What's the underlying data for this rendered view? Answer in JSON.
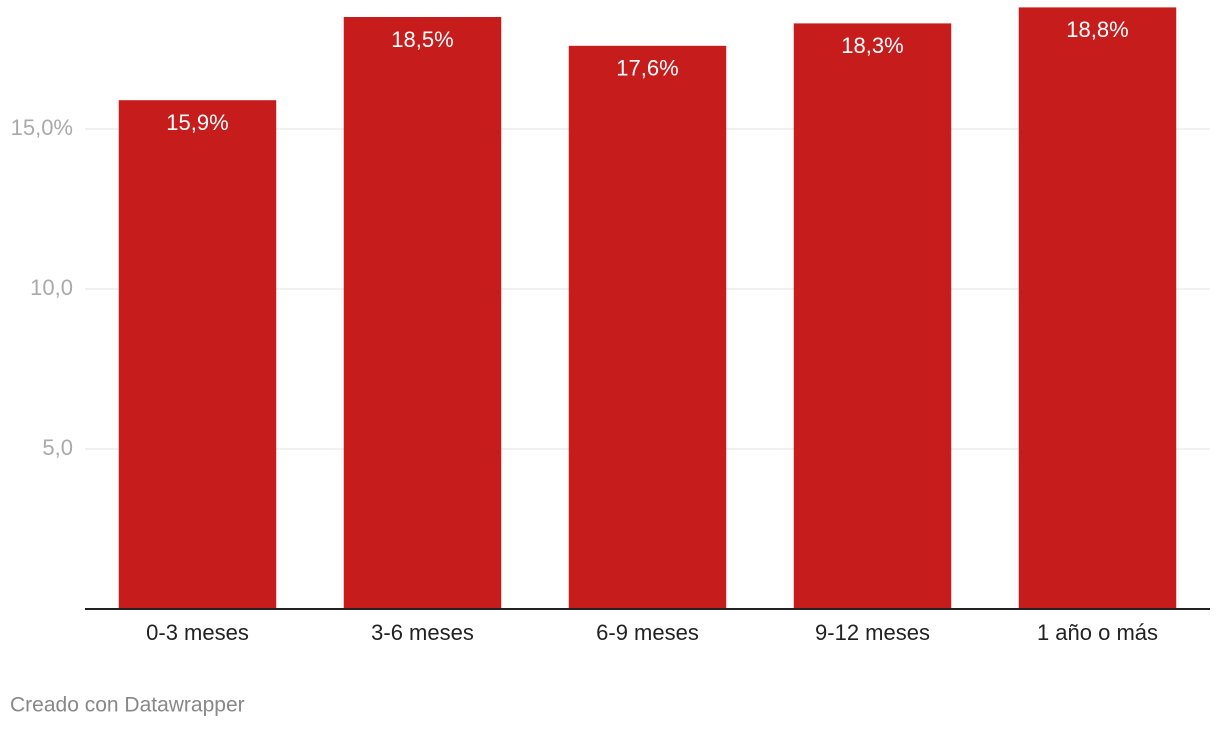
{
  "chart_data": {
    "type": "bar",
    "categories": [
      "0-3 meses",
      "3-6 meses",
      "6-9 meses",
      "9-12 meses",
      "1 año o más"
    ],
    "values": [
      15.9,
      18.5,
      17.6,
      18.3,
      18.8
    ],
    "value_labels": [
      "15,9%",
      "18,5%",
      "17,6%",
      "18,3%",
      "18,8%"
    ],
    "color": "#c71c1c",
    "ylim": [
      0,
      19
    ],
    "yticks": [
      {
        "value": 5,
        "label": "5,0"
      },
      {
        "value": 10,
        "label": "10,0"
      },
      {
        "value": 15,
        "label": "15,0%"
      }
    ],
    "grid": true,
    "source": "Creado con Datawrapper"
  }
}
